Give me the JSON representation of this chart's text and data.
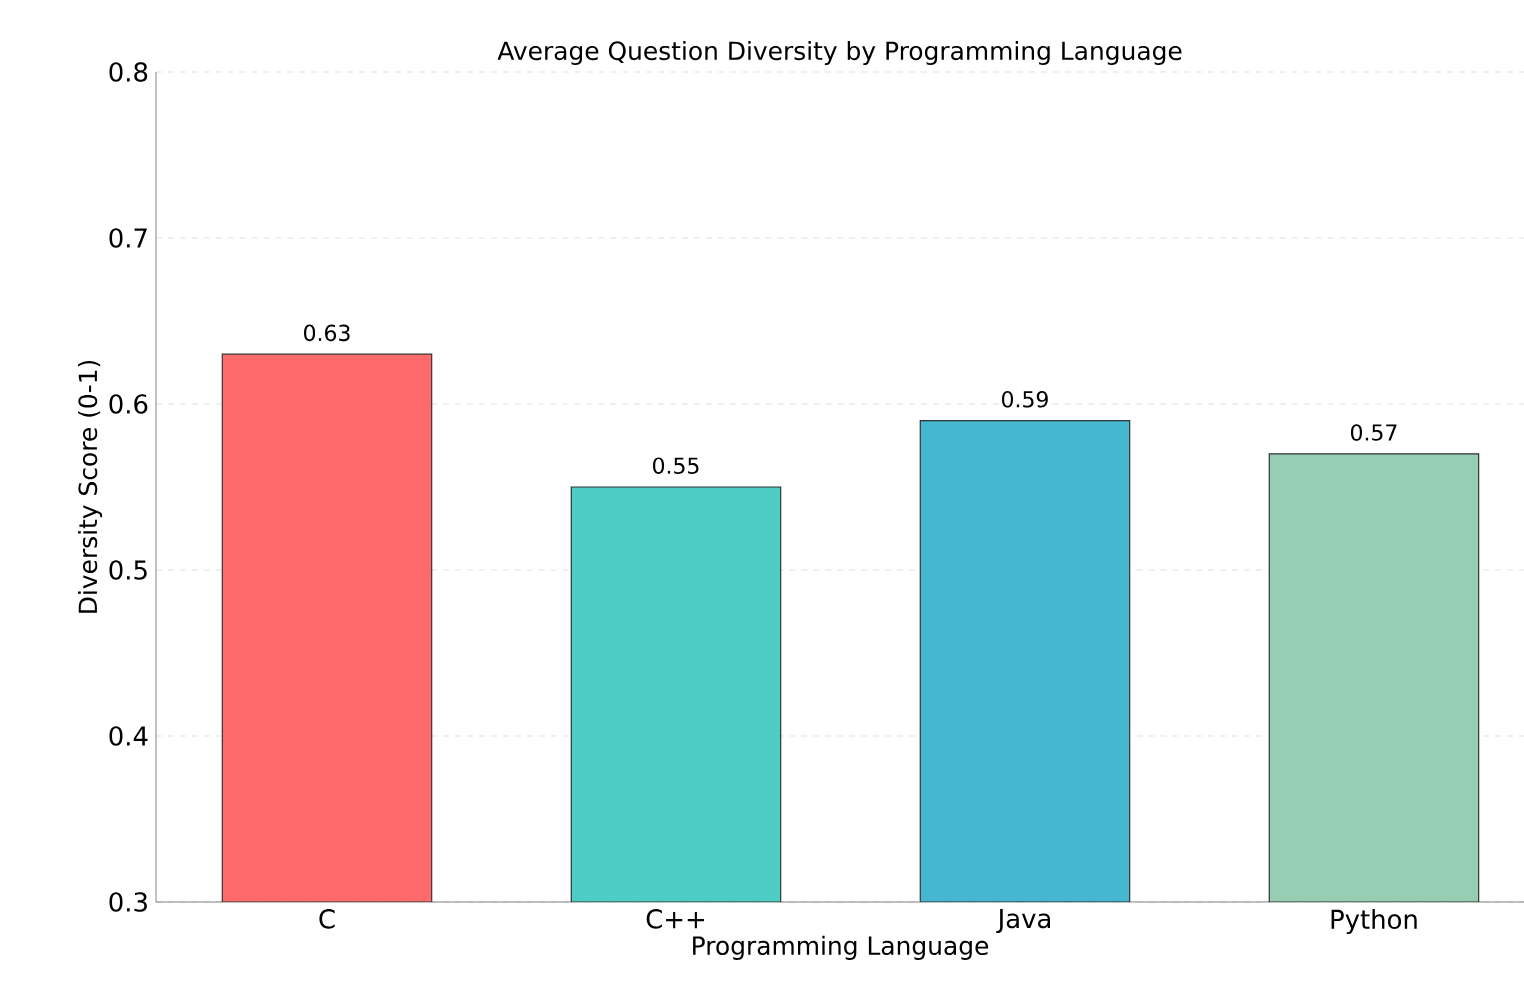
{
  "chart_data": {
    "type": "bar",
    "title": "Average Question Diversity by Programming Language",
    "xlabel": "Programming Language",
    "ylabel": "Diversity Score (0-1)",
    "categories": [
      "C",
      "C++",
      "Java",
      "Python"
    ],
    "values": [
      0.63,
      0.55,
      0.59,
      0.57
    ],
    "colors": [
      "#ff6b6b",
      "#4ecdc4",
      "#45b7d1",
      "#96ceb4"
    ],
    "ylim": [
      0.3,
      0.8
    ],
    "yticks": [
      0.3,
      0.4,
      0.5,
      0.6,
      0.7,
      0.8
    ],
    "grid": "y",
    "data_labels": true
  }
}
